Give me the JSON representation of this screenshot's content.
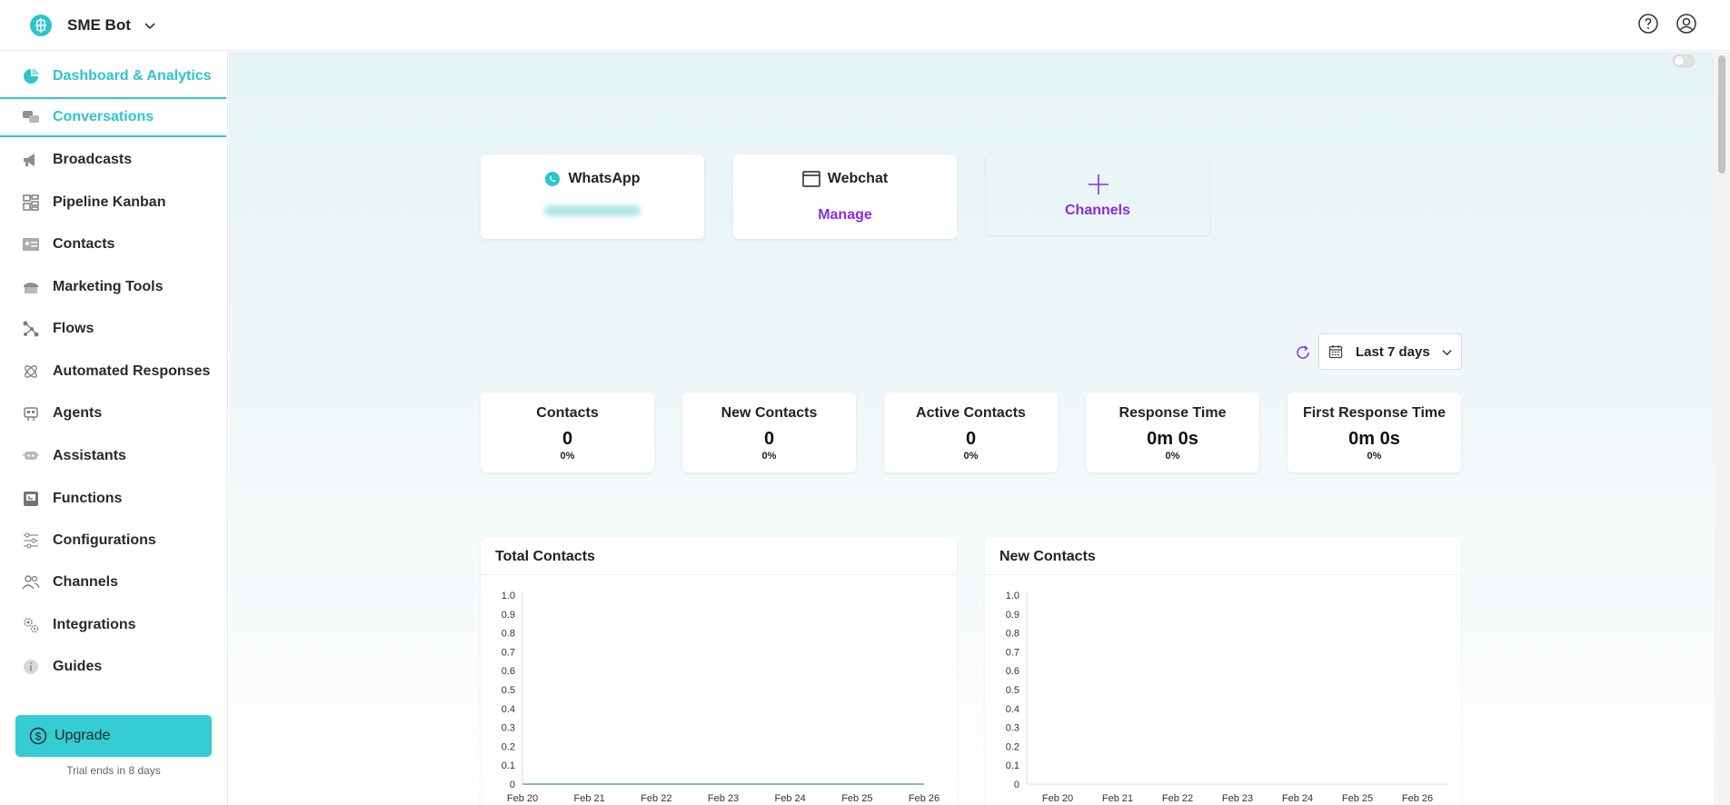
{
  "topbar": {
    "workspace_name": "SME Bot"
  },
  "sidebar": {
    "items": [
      {
        "label": "Dashboard & Analytics",
        "icon": "pie-chart-icon"
      },
      {
        "label": "Conversations",
        "icon": "chat-bubbles-icon"
      },
      {
        "label": "Broadcasts",
        "icon": "megaphone-icon"
      },
      {
        "label": "Pipeline Kanban",
        "icon": "kanban-icon"
      },
      {
        "label": "Contacts",
        "icon": "contact-card-icon"
      },
      {
        "label": "Marketing Tools",
        "icon": "storefront-icon"
      },
      {
        "label": "Flows",
        "icon": "flow-nodes-icon"
      },
      {
        "label": "Automated Responses",
        "icon": "atom-icon"
      },
      {
        "label": "Agents",
        "icon": "agent-icon"
      },
      {
        "label": "Assistants",
        "icon": "assistant-icon"
      },
      {
        "label": "Functions",
        "icon": "function-icon"
      },
      {
        "label": "Configurations",
        "icon": "sliders-icon"
      },
      {
        "label": "Channels",
        "icon": "users-icon"
      },
      {
        "label": "Integrations",
        "icon": "gears-icon"
      },
      {
        "label": "Guides",
        "icon": "info-icon"
      }
    ],
    "upgrade_label": "Upgrade",
    "trial_text": "Trial ends in 8 days"
  },
  "channels": {
    "whatsapp": {
      "title": "WhatsApp"
    },
    "webchat": {
      "title": "Webchat",
      "action": "Manage"
    },
    "add": {
      "label": "Channels"
    }
  },
  "date_range": {
    "selected": "Last 7 days"
  },
  "stats": [
    {
      "label": "Contacts",
      "value": "0",
      "change": "0%"
    },
    {
      "label": "New Contacts",
      "value": "0",
      "change": "0%"
    },
    {
      "label": "Active Contacts",
      "value": "0",
      "change": "0%"
    },
    {
      "label": "Response Time",
      "value": "0m 0s",
      "change": "0%"
    },
    {
      "label": "First Response Time",
      "value": "0m 0s",
      "change": "0%"
    }
  ],
  "colors": {
    "accent": "#2ec4cc",
    "link": "#8a2be2",
    "line": "#3a8fb0"
  },
  "chart_data": [
    {
      "type": "line",
      "title": "Total Contacts",
      "categories": [
        "Feb 20",
        "Feb 21",
        "Feb 22",
        "Feb 23",
        "Feb 24",
        "Feb 25",
        "Feb 26"
      ],
      "series": [
        {
          "values": [
            0,
            0,
            0,
            0,
            0,
            0,
            0
          ]
        }
      ],
      "ylim": [
        0,
        1
      ],
      "yticks": [
        "0",
        "0.1",
        "0.2",
        "0.3",
        "0.4",
        "0.5",
        "0.6",
        "0.7",
        "0.8",
        "0.9",
        "1.0"
      ]
    },
    {
      "type": "line",
      "title": "New Contacts",
      "categories": [
        "Feb 20",
        "Feb 21",
        "Feb 22",
        "Feb 23",
        "Feb 24",
        "Feb 25",
        "Feb 26"
      ],
      "series": [
        {
          "values": [
            0,
            0,
            0,
            0,
            0,
            0,
            0
          ]
        }
      ],
      "ylim": [
        0,
        1
      ],
      "yticks": [
        "0",
        "0.1",
        "0.2",
        "0.3",
        "0.4",
        "0.5",
        "0.6",
        "0.7",
        "0.8",
        "0.9",
        "1.0"
      ]
    }
  ]
}
